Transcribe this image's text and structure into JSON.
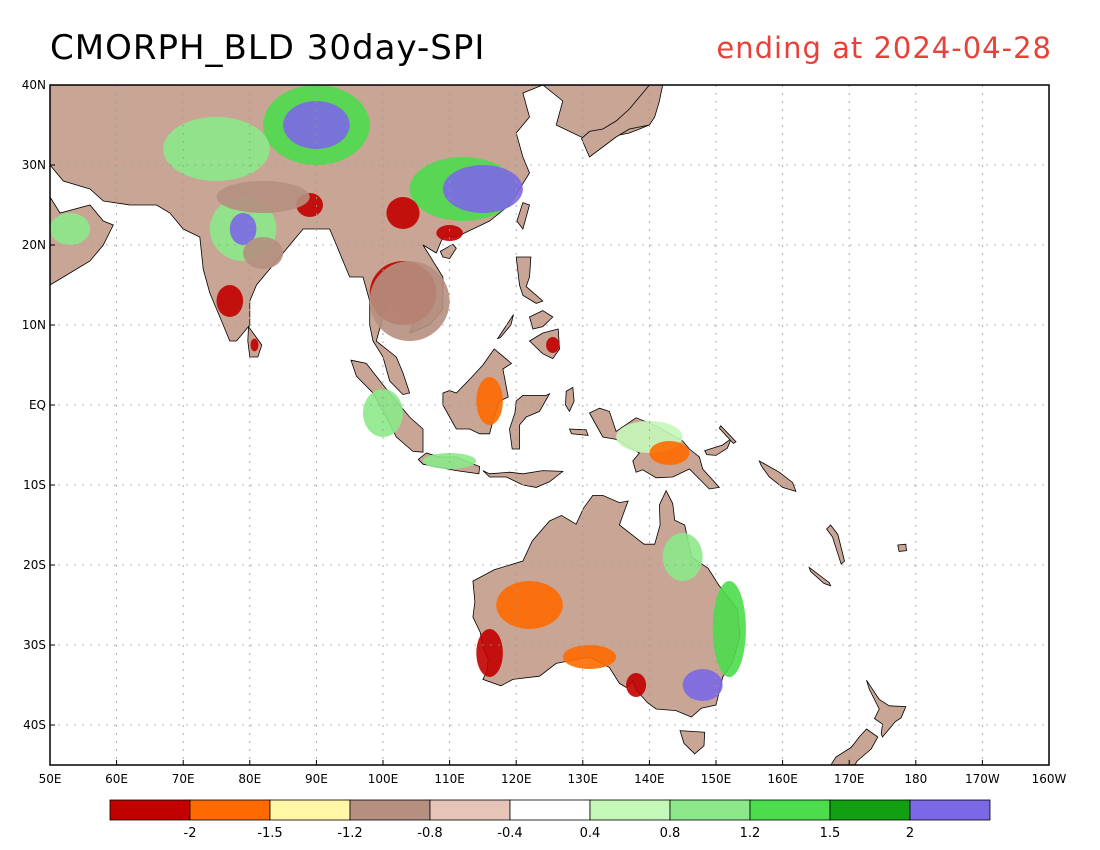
{
  "title": "CMORPH_BLD 30day-SPI",
  "subtitle": "ending at 2024-04-28",
  "colors": {
    "subtitle": "#e8413a",
    "land": "#c9a595",
    "coast": "#000000",
    "grid": "#9a9a9a"
  },
  "map": {
    "lon_range": [
      50,
      200
    ],
    "lat_range": [
      -45,
      40
    ],
    "lat_ticks": [
      {
        "lat": 40,
        "label": "40N"
      },
      {
        "lat": 30,
        "label": "30N"
      },
      {
        "lat": 20,
        "label": "20N"
      },
      {
        "lat": 10,
        "label": "10N"
      },
      {
        "lat": 0,
        "label": "EQ"
      },
      {
        "lat": -10,
        "label": "10S"
      },
      {
        "lat": -20,
        "label": "20S"
      },
      {
        "lat": -30,
        "label": "30S"
      },
      {
        "lat": -40,
        "label": "40S"
      }
    ],
    "lon_ticks": [
      {
        "lon": 50,
        "label": "50E"
      },
      {
        "lon": 60,
        "label": "60E"
      },
      {
        "lon": 70,
        "label": "70E"
      },
      {
        "lon": 80,
        "label": "80E"
      },
      {
        "lon": 90,
        "label": "90E"
      },
      {
        "lon": 100,
        "label": "100E"
      },
      {
        "lon": 110,
        "label": "110E"
      },
      {
        "lon": 120,
        "label": "120E"
      },
      {
        "lon": 130,
        "label": "130E"
      },
      {
        "lon": 140,
        "label": "140E"
      },
      {
        "lon": 150,
        "label": "150E"
      },
      {
        "lon": 160,
        "label": "160E"
      },
      {
        "lon": 170,
        "label": "170E"
      },
      {
        "lon": 180,
        "label": "180"
      },
      {
        "lon": 190,
        "label": "170W"
      },
      {
        "lon": 200,
        "label": "160W"
      }
    ]
  },
  "colorbar": {
    "colors": [
      "#c20000",
      "#ff6a00",
      "#fff6a6",
      "#b58f80",
      "#e6c4b8",
      "#ffffff",
      "#c4f7b8",
      "#8ce98a",
      "#4cdd4c",
      "#12a012",
      "#7b68e6"
    ],
    "labels": [
      "-2",
      "-1.5",
      "-1.2",
      "-0.8",
      "-0.4",
      "0.4",
      "0.8",
      "1.2",
      "1.5",
      "2"
    ]
  }
}
